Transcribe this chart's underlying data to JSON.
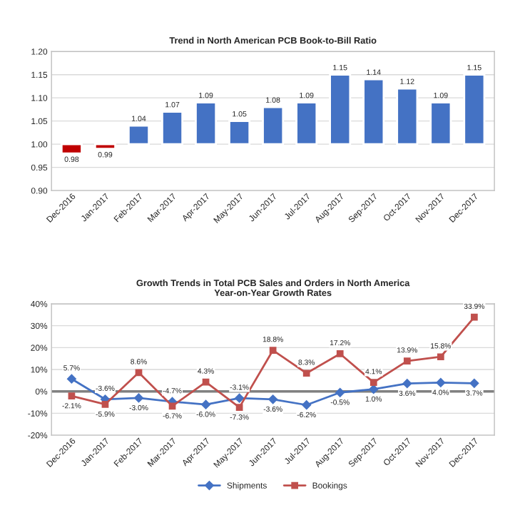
{
  "chart_data": [
    {
      "type": "bar",
      "title": "Trend in North American PCB Book-to-Bill Ratio",
      "categories": [
        "Dec-2016",
        "Jan-2017",
        "Feb-2017",
        "Mar-2017",
        "Apr-2017",
        "May-2017",
        "Jun-2017",
        "Jul-2017",
        "Aug-2017",
        "Sep-2017",
        "Oct-2017",
        "Nov-2017",
        "Dec-2017"
      ],
      "base": [
        1.0,
        1.0,
        1.0,
        1.0,
        1.0,
        1.0,
        1.0,
        1.0,
        1.0,
        1.0,
        1.0,
        1.0,
        1.0
      ],
      "values": [
        -0.02,
        -0.01,
        0.04,
        0.07,
        0.09,
        0.05,
        0.08,
        0.09,
        0.15,
        0.14,
        0.12,
        0.09,
        0.15
      ],
      "value_labels": [
        "0.98",
        "0.99",
        "1.04",
        "1.07",
        "1.09",
        "1.05",
        "1.08",
        "1.09",
        "1.15",
        "1.14",
        "1.12",
        "1.09",
        "1.15"
      ],
      "colors": [
        "#c00000",
        "#c00000",
        "#4472c4",
        "#4472c4",
        "#4472c4",
        "#4472c4",
        "#4472c4",
        "#4472c4",
        "#4472c4",
        "#4472c4",
        "#4472c4",
        "#4472c4",
        "#4472c4"
      ],
      "ylim": [
        0.9,
        1.2
      ],
      "yticks": [
        {
          "value": 0.9,
          "label": "0.90"
        },
        {
          "value": 0.95,
          "label": "0.95"
        },
        {
          "value": 1.0,
          "label": "1.00"
        },
        {
          "value": 1.05,
          "label": "1.05"
        },
        {
          "value": 1.1,
          "label": "1.10"
        },
        {
          "value": 1.15,
          "label": "1.15"
        },
        {
          "value": 1.2,
          "label": "1.20"
        }
      ],
      "grid": "y"
    },
    {
      "type": "line",
      "title": "Growth Trends in Total PCB Sales and Orders in North America",
      "subtitle": "Year-on-Year Growth Rates",
      "categories": [
        "Dec-2016",
        "Jan-2017",
        "Feb-2017",
        "Mar-2017",
        "Apr-2017",
        "May-2017",
        "Jun-2017",
        "Jul-2017",
        "Aug-2017",
        "Sep-2017",
        "Oct-2017",
        "Nov-2017",
        "Dec-2017"
      ],
      "series": [
        {
          "name": "Shipments",
          "color": "#4472c4",
          "marker": "diamond",
          "values": [
            5.7,
            -3.6,
            -3.0,
            -4.7,
            -6.0,
            -3.1,
            -3.6,
            -6.2,
            -0.5,
            1.0,
            3.6,
            4.0,
            3.7
          ],
          "value_labels": [
            "5.7%",
            "-3.6%",
            "-3.0%",
            "-4.7%",
            "-6.0%",
            "-3.1%",
            "-3.6%",
            "-6.2%",
            "-0.5%",
            "1.0%",
            "3.6%",
            "4.0%",
            "3.7%"
          ]
        },
        {
          "name": "Bookings",
          "color": "#c0504d",
          "marker": "square",
          "values": [
            -2.1,
            -5.9,
            8.6,
            -6.7,
            4.3,
            -7.3,
            18.8,
            8.3,
            17.2,
            4.1,
            13.9,
            15.8,
            33.9
          ],
          "value_labels": [
            "-2.1%",
            "-5.9%",
            "8.6%",
            "-6.7%",
            "4.3%",
            "-7.3%",
            "18.8%",
            "8.3%",
            "17.2%",
            "4.1%",
            "13.9%",
            "15.8%",
            "33.9%"
          ]
        }
      ],
      "ylim": [
        -20,
        40
      ],
      "yticks": [
        {
          "value": -20,
          "label": "-20%"
        },
        {
          "value": -10,
          "label": "-10%"
        },
        {
          "value": 0,
          "label": "0%"
        },
        {
          "value": 10,
          "label": "10%"
        },
        {
          "value": 20,
          "label": "20%"
        },
        {
          "value": 30,
          "label": "30%"
        },
        {
          "value": 40,
          "label": "40%"
        }
      ],
      "ref_lines": [
        {
          "axis": "y",
          "value": 0,
          "color": "#808080"
        }
      ],
      "grid": "y",
      "legend": "bottom"
    }
  ]
}
